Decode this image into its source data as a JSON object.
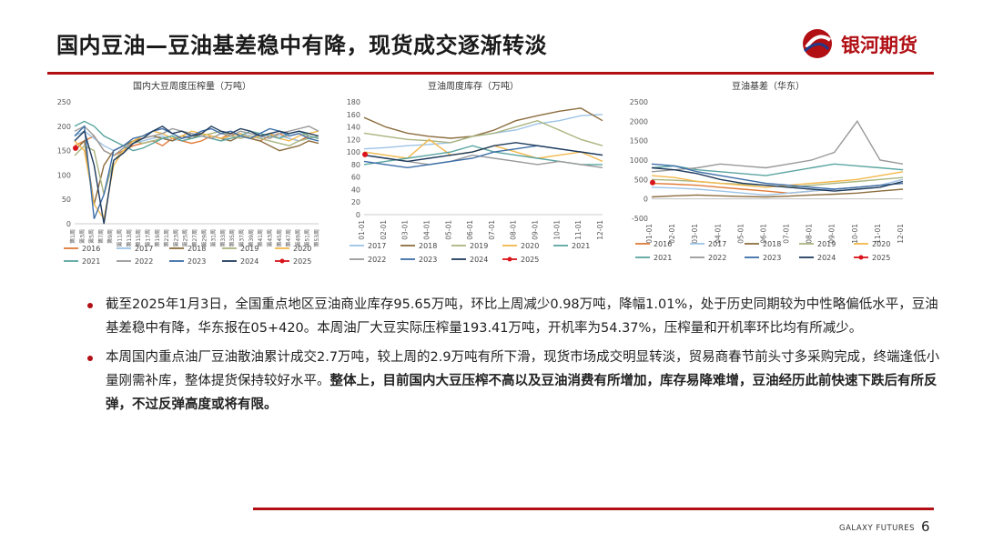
{
  "slide": {
    "title": "国内豆油—豆油基差稳中有降，现货成交逐渐转淡",
    "brand": "银河期货",
    "footer": "GALAXY FUTURES",
    "page_number": "6"
  },
  "colors": {
    "accent": "#b10f14",
    "y2016": "#e07b39",
    "y2017": "#9dc3e6",
    "y2018": "#8c6d3f",
    "y2019": "#a9b47f",
    "y2020": "#f2b84b",
    "y2021": "#5aa5a0",
    "y2022": "#999999",
    "y2023": "#3c6ea8",
    "y2024": "#1f3b5c",
    "y2025": "#d9141b"
  },
  "bullets": [
    {
      "text": "截至2025年1月3日，全国重点地区豆油商业库存95.65万吨，环比上周减少0.98万吨，降幅1.01%，处于历史同期较为中性略偏低水平，豆油基差稳中有降，华东报在05+420。本周油厂大豆实际压榨量193.41万吨，开机率为54.37%，压榨量和开机率环比均有所减少。",
      "bold": ""
    },
    {
      "text": "本周国内重点油厂豆油散油累计成交2.7万吨，较上周的2.9万吨有所下滑，现货市场成交明显转淡，贸易商春节前头寸多采购完成，终端逢低小量刚需补库，整体提货保持较好水平。",
      "bold": "整体上，目前国内大豆压榨不高以及豆油消费有所增加，库存易降难增，豆油经历此前快速下跌后有所反弹，不过反弹高度或将有限。"
    }
  ],
  "chart_data": [
    {
      "type": "line",
      "title": "国内大豆周度压榨量（万吨）",
      "ylim": [
        0,
        250
      ],
      "y_ticks": [
        "0",
        "50",
        "100",
        "150",
        "200",
        "250"
      ],
      "x_ticks": [
        "第1周",
        "第3周",
        "第5周",
        "第7周",
        "第9周",
        "第11周",
        "第13周",
        "第15周",
        "第17周",
        "第19周",
        "第21周",
        "第23周",
        "第25周",
        "第27周",
        "第29周",
        "第31周",
        "第33周",
        "第35周",
        "第37周",
        "第39周",
        "第41周",
        "第43周",
        "第45周",
        "第47周",
        "第49周",
        "第51周",
        "第53周"
      ],
      "legend": [
        "2016",
        "2017",
        "2018",
        "2019",
        "2020",
        "2021",
        "2022",
        "2023",
        "2024",
        "2025"
      ],
      "series": [
        {
          "name": "2016",
          "values": [
            160,
            170,
            180,
            150,
            140,
            150,
            160,
            165,
            170,
            160,
            175,
            170,
            165,
            170,
            180,
            175,
            185,
            180,
            175,
            170,
            180,
            185,
            175,
            170,
            180,
            175
          ]
        },
        {
          "name": "2017",
          "values": [
            180,
            190,
            175,
            160,
            150,
            160,
            165,
            170,
            175,
            180,
            170,
            175,
            185,
            180,
            175,
            170,
            180,
            185,
            180,
            175,
            185,
            180,
            175,
            170,
            175,
            180
          ]
        },
        {
          "name": "2018",
          "values": [
            150,
            170,
            40,
            120,
            150,
            160,
            170,
            175,
            180,
            175,
            170,
            180,
            175,
            185,
            180,
            175,
            170,
            180,
            175,
            170,
            160,
            150,
            155,
            160,
            170,
            165
          ]
        },
        {
          "name": "2019",
          "values": [
            140,
            160,
            150,
            60,
            130,
            150,
            170,
            165,
            170,
            175,
            180,
            170,
            175,
            180,
            185,
            190,
            180,
            175,
            180,
            175,
            170,
            165,
            160,
            170,
            175,
            180
          ]
        },
        {
          "name": "2020",
          "values": [
            170,
            150,
            40,
            10,
            120,
            150,
            170,
            180,
            190,
            185,
            175,
            180,
            190,
            185,
            180,
            175,
            180,
            185,
            175,
            180,
            185,
            175,
            170,
            180,
            185,
            190
          ]
        },
        {
          "name": "2021",
          "values": [
            200,
            210,
            200,
            180,
            170,
            160,
            150,
            155,
            165,
            175,
            180,
            170,
            175,
            180,
            175,
            170,
            175,
            180,
            190,
            185,
            180,
            175,
            185,
            190,
            180,
            175
          ]
        },
        {
          "name": "2022",
          "values": [
            190,
            200,
            180,
            150,
            140,
            155,
            165,
            175,
            180,
            185,
            195,
            190,
            185,
            180,
            175,
            185,
            180,
            190,
            185,
            180,
            175,
            185,
            190,
            195,
            200,
            190
          ]
        },
        {
          "name": "2023",
          "values": [
            180,
            200,
            10,
            60,
            150,
            160,
            175,
            180,
            190,
            195,
            185,
            175,
            180,
            190,
            195,
            185,
            190,
            180,
            175,
            185,
            195,
            190,
            180,
            185,
            175,
            170
          ]
        },
        {
          "name": "2024",
          "values": [
            170,
            190,
            120,
            0,
            130,
            145,
            165,
            175,
            190,
            200,
            185,
            190,
            180,
            185,
            200,
            190,
            185,
            195,
            190,
            180,
            185,
            190,
            185,
            190,
            185,
            180
          ]
        },
        {
          "name": "2025",
          "values": [
            155
          ]
        }
      ]
    },
    {
      "type": "line",
      "title": "豆油周度库存（万吨）",
      "ylim": [
        0,
        180
      ],
      "y_ticks": [
        "0",
        "20",
        "40",
        "60",
        "80",
        "100",
        "120",
        "140",
        "160",
        "180"
      ],
      "x_ticks": [
        "01-01",
        "02-01",
        "03-01",
        "04-01",
        "05-01",
        "06-01",
        "07-01",
        "08-01",
        "09-01",
        "10-01",
        "11-01",
        "12-01"
      ],
      "legend": [
        "2017",
        "2018",
        "2019",
        "2020",
        "2021",
        "2022",
        "2023",
        "2024",
        "2025"
      ],
      "series": [
        {
          "name": "2017",
          "values": [
            105,
            107,
            110,
            112,
            115,
            125,
            130,
            135,
            145,
            150,
            158,
            160
          ]
        },
        {
          "name": "2018",
          "values": [
            155,
            140,
            130,
            125,
            122,
            125,
            135,
            150,
            158,
            165,
            170,
            150
          ]
        },
        {
          "name": "2019",
          "values": [
            130,
            125,
            120,
            118,
            115,
            125,
            130,
            140,
            150,
            135,
            120,
            110
          ]
        },
        {
          "name": "2020",
          "values": [
            100,
            95,
            90,
            120,
            95,
            100,
            110,
            100,
            90,
            95,
            100,
            85
          ]
        },
        {
          "name": "2021",
          "values": [
            80,
            85,
            90,
            95,
            100,
            110,
            100,
            95,
            90,
            85,
            80,
            80
          ]
        },
        {
          "name": "2022",
          "values": [
            95,
            90,
            85,
            80,
            85,
            95,
            90,
            85,
            80,
            85,
            80,
            75
          ]
        },
        {
          "name": "2023",
          "values": [
            85,
            80,
            75,
            80,
            85,
            90,
            100,
            105,
            110,
            105,
            100,
            95
          ]
        },
        {
          "name": "2024",
          "values": [
            95,
            90,
            85,
            90,
            95,
            100,
            110,
            115,
            110,
            105,
            100,
            95
          ]
        },
        {
          "name": "2025",
          "values": [
            96
          ]
        }
      ]
    },
    {
      "type": "line",
      "title": "豆油基差（华东）",
      "ylim": [
        -500,
        2500
      ],
      "y_ticks": [
        "-500",
        "0",
        "500",
        "1000",
        "1500",
        "2000",
        "2500"
      ],
      "x_ticks": [
        "01-01",
        "02-01",
        "03-01",
        "04-01",
        "05-01",
        "06-01",
        "07-01",
        "08-01",
        "09-01",
        "10-01",
        "11-01",
        "12-01"
      ],
      "legend": [
        "2016",
        "2017",
        "2018",
        "2019",
        "2020",
        "2021",
        "2022",
        "2023",
        "2024",
        "2025"
      ],
      "series": [
        {
          "name": "2016",
          "values": [
            400,
            380,
            350,
            300,
            250,
            200,
            150,
            200,
            250,
            300,
            350,
            400
          ]
        },
        {
          "name": "2017",
          "values": [
            300,
            280,
            250,
            200,
            150,
            100,
            150,
            200,
            250,
            300,
            350,
            500
          ]
        },
        {
          "name": "2018",
          "values": [
            50,
            80,
            100,
            80,
            60,
            50,
            70,
            100,
            120,
            150,
            200,
            250
          ]
        },
        {
          "name": "2019",
          "values": [
            500,
            480,
            450,
            400,
            380,
            350,
            300,
            350,
            400,
            450,
            500,
            550
          ]
        },
        {
          "name": "2020",
          "values": [
            600,
            550,
            450,
            400,
            350,
            300,
            350,
            400,
            450,
            500,
            600,
            700
          ]
        },
        {
          "name": "2021",
          "values": [
            800,
            850,
            750,
            700,
            650,
            600,
            700,
            800,
            900,
            850,
            800,
            750
          ]
        },
        {
          "name": "2022",
          "values": [
            700,
            750,
            800,
            900,
            850,
            800,
            900,
            1000,
            1200,
            2000,
            1000,
            900
          ]
        },
        {
          "name": "2023",
          "values": [
            900,
            850,
            700,
            600,
            500,
            400,
            350,
            300,
            250,
            300,
            350,
            400
          ]
        },
        {
          "name": "2024",
          "values": [
            800,
            750,
            650,
            500,
            400,
            350,
            300,
            250,
            200,
            250,
            300,
            450
          ]
        },
        {
          "name": "2025",
          "values": [
            420
          ]
        }
      ]
    }
  ]
}
